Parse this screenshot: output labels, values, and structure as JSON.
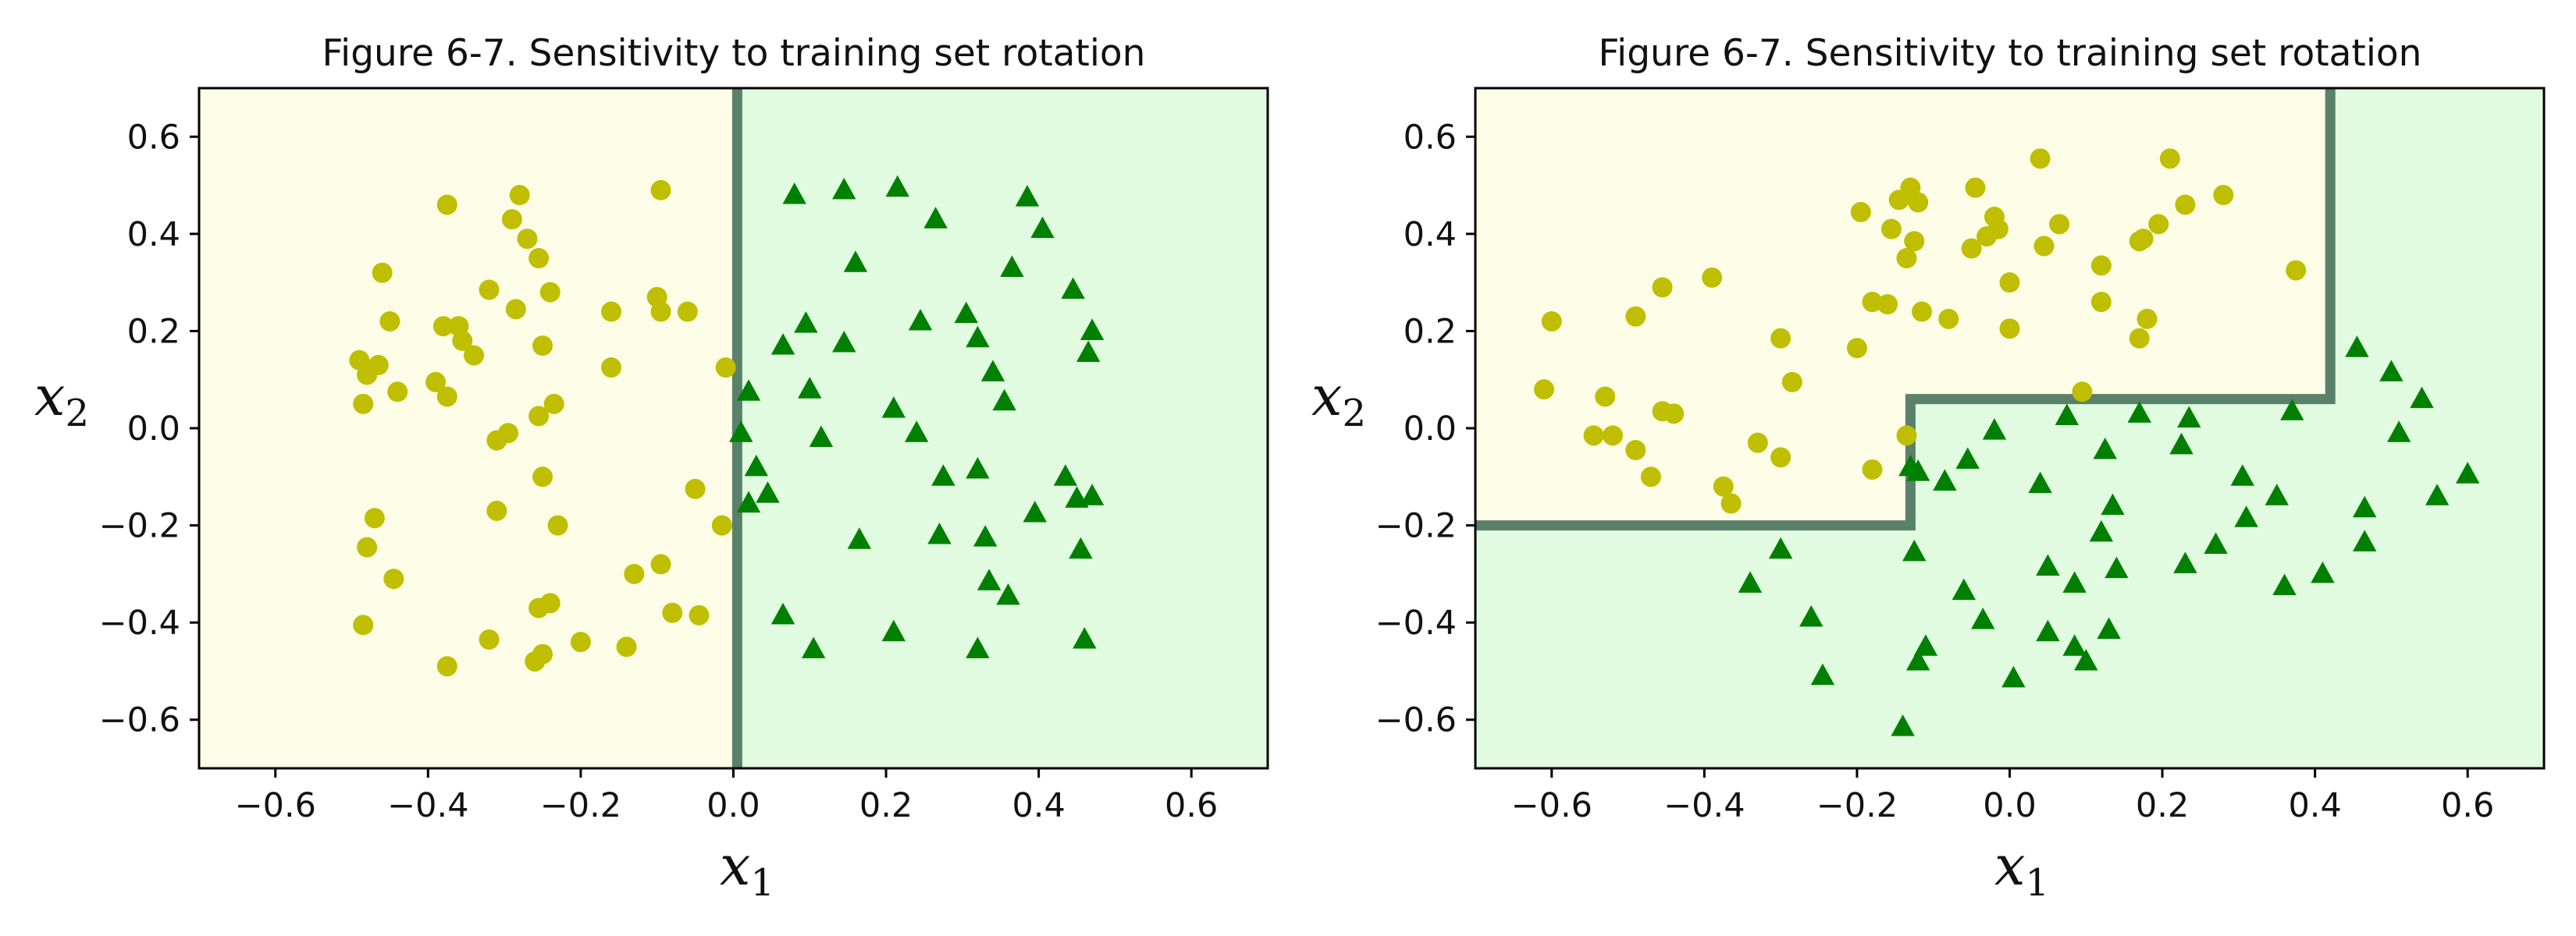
{
  "colors": {
    "class0_region": "#fdfde7",
    "class1_region": "#e0fbe0",
    "class0_marker": "#bfbf00",
    "class1_marker": "#008000"
  },
  "chart_data": [
    {
      "type": "scatter",
      "title": "Figure 6-7. Sensitivity to training set rotation",
      "xlabel": "x1",
      "ylabel": "x2",
      "xlim": [
        -0.7,
        0.7
      ],
      "ylim": [
        -0.7,
        0.7
      ],
      "xticks": [
        "−0.6",
        "−0.4",
        "−0.2",
        "0.0",
        "0.2",
        "0.4",
        "0.6"
      ],
      "yticks": [
        "−0.6",
        "−0.4",
        "−0.2",
        "0.0",
        "0.2",
        "0.4",
        "0.6"
      ],
      "tick_values": [
        -0.6,
        -0.4,
        -0.2,
        0.0,
        0.2,
        0.4,
        0.6
      ],
      "legend": "none",
      "grid": false,
      "decision_boundary": [
        [
          0.005,
          0.7
        ],
        [
          0.005,
          -0.7
        ]
      ],
      "class0_side": "left",
      "series": [
        {
          "marker": "circle",
          "points": [
            [
              -0.49,
              0.14
            ],
            [
              -0.485,
              0.05
            ],
            [
              -0.48,
              0.11
            ],
            [
              -0.465,
              0.13
            ],
            [
              -0.46,
              0.32
            ],
            [
              -0.45,
              0.22
            ],
            [
              -0.44,
              0.075
            ],
            [
              -0.47,
              -0.185
            ],
            [
              -0.48,
              -0.245
            ],
            [
              -0.445,
              -0.31
            ],
            [
              -0.485,
              -0.405
            ],
            [
              -0.375,
              0.46
            ],
            [
              -0.38,
              0.21
            ],
            [
              -0.36,
              0.21
            ],
            [
              -0.355,
              0.18
            ],
            [
              -0.34,
              0.15
            ],
            [
              -0.39,
              0.095
            ],
            [
              -0.375,
              0.065
            ],
            [
              -0.32,
              0.285
            ],
            [
              -0.29,
              0.43
            ],
            [
              -0.28,
              0.48
            ],
            [
              -0.27,
              0.39
            ],
            [
              -0.255,
              0.35
            ],
            [
              -0.285,
              0.245
            ],
            [
              -0.25,
              0.17
            ],
            [
              -0.24,
              0.28
            ],
            [
              -0.235,
              0.05
            ],
            [
              -0.255,
              0.025
            ],
            [
              -0.31,
              -0.025
            ],
            [
              -0.295,
              -0.01
            ],
            [
              -0.31,
              -0.17
            ],
            [
              -0.25,
              -0.1
            ],
            [
              -0.23,
              -0.2
            ],
            [
              -0.24,
              -0.36
            ],
            [
              -0.255,
              -0.37
            ],
            [
              -0.25,
              -0.465
            ],
            [
              -0.26,
              -0.48
            ],
            [
              -0.32,
              -0.435
            ],
            [
              -0.375,
              -0.49
            ],
            [
              -0.2,
              -0.44
            ],
            [
              -0.16,
              0.24
            ],
            [
              -0.16,
              0.125
            ],
            [
              -0.1,
              0.27
            ],
            [
              -0.095,
              0.24
            ],
            [
              -0.095,
              0.49
            ],
            [
              -0.06,
              0.24
            ],
            [
              -0.14,
              -0.45
            ],
            [
              -0.13,
              -0.3
            ],
            [
              -0.095,
              -0.28
            ],
            [
              -0.08,
              -0.38
            ],
            [
              -0.045,
              -0.385
            ],
            [
              -0.05,
              -0.125
            ],
            [
              -0.01,
              0.125
            ],
            [
              -0.015,
              -0.2
            ]
          ]
        },
        {
          "marker": "triangle",
          "points": [
            [
              0.01,
              -0.01
            ],
            [
              0.02,
              0.075
            ],
            [
              0.03,
              -0.08
            ],
            [
              0.02,
              -0.155
            ],
            [
              0.045,
              -0.135
            ],
            [
              0.065,
              0.17
            ],
            [
              0.08,
              0.48
            ],
            [
              0.095,
              0.215
            ],
            [
              0.1,
              0.08
            ],
            [
              0.115,
              -0.02
            ],
            [
              0.145,
              0.49
            ],
            [
              0.145,
              0.175
            ],
            [
              0.16,
              0.34
            ],
            [
              0.165,
              -0.23
            ],
            [
              0.065,
              -0.385
            ],
            [
              0.105,
              -0.455
            ],
            [
              0.215,
              0.495
            ],
            [
              0.21,
              0.04
            ],
            [
              0.21,
              -0.42
            ],
            [
              0.245,
              0.22
            ],
            [
              0.265,
              0.43
            ],
            [
              0.27,
              -0.22
            ],
            [
              0.275,
              -0.1
            ],
            [
              0.24,
              -0.01
            ],
            [
              0.305,
              0.235
            ],
            [
              0.32,
              0.185
            ],
            [
              0.34,
              0.115
            ],
            [
              0.355,
              0.055
            ],
            [
              0.32,
              -0.085
            ],
            [
              0.33,
              -0.225
            ],
            [
              0.335,
              -0.315
            ],
            [
              0.36,
              -0.345
            ],
            [
              0.32,
              -0.455
            ],
            [
              0.365,
              0.33
            ],
            [
              0.385,
              0.475
            ],
            [
              0.395,
              -0.175
            ],
            [
              0.405,
              0.41
            ],
            [
              0.435,
              -0.1
            ],
            [
              0.445,
              0.285
            ],
            [
              0.45,
              -0.145
            ],
            [
              0.455,
              -0.25
            ],
            [
              0.46,
              -0.435
            ],
            [
              0.465,
              0.155
            ],
            [
              0.47,
              0.2
            ],
            [
              0.47,
              -0.14
            ]
          ]
        }
      ]
    },
    {
      "type": "scatter",
      "title": "Figure 6-7. Sensitivity to training set rotation",
      "xlabel": "x1",
      "ylabel": "x2",
      "xlim": [
        -0.7,
        0.7
      ],
      "ylim": [
        -0.7,
        0.7
      ],
      "xticks": [
        "−0.6",
        "−0.4",
        "−0.2",
        "0.0",
        "0.2",
        "0.4",
        "0.6"
      ],
      "yticks": [
        "−0.6",
        "−0.4",
        "−0.2",
        "0.0",
        "0.2",
        "0.4",
        "0.6"
      ],
      "tick_values": [
        -0.6,
        -0.4,
        -0.2,
        0.0,
        0.2,
        0.4,
        0.6
      ],
      "legend": "none",
      "grid": false,
      "decision_boundary": [
        [
          -0.7,
          -0.2
        ],
        [
          -0.13,
          -0.2
        ],
        [
          -0.13,
          0.06
        ],
        [
          0.42,
          0.06
        ],
        [
          0.42,
          0.7
        ]
      ],
      "class0_side": "upper-left",
      "series": [
        {
          "marker": "circle",
          "points": [
            [
              -0.61,
              0.08
            ],
            [
              -0.6,
              0.22
            ],
            [
              -0.545,
              -0.015
            ],
            [
              -0.53,
              0.065
            ],
            [
              -0.52,
              -0.015
            ],
            [
              -0.49,
              0.23
            ],
            [
              -0.49,
              -0.045
            ],
            [
              -0.47,
              -0.1
            ],
            [
              -0.455,
              0.29
            ],
            [
              -0.455,
              0.035
            ],
            [
              -0.44,
              0.03
            ],
            [
              -0.39,
              0.31
            ],
            [
              -0.375,
              -0.12
            ],
            [
              -0.365,
              -0.155
            ],
            [
              -0.33,
              -0.03
            ],
            [
              -0.3,
              0.185
            ],
            [
              -0.3,
              -0.06
            ],
            [
              -0.285,
              0.095
            ],
            [
              -0.2,
              0.165
            ],
            [
              -0.18,
              0.26
            ],
            [
              -0.16,
              0.255
            ],
            [
              -0.195,
              0.445
            ],
            [
              -0.155,
              0.41
            ],
            [
              -0.145,
              0.47
            ],
            [
              -0.135,
              0.35
            ],
            [
              -0.13,
              0.495
            ],
            [
              -0.125,
              0.385
            ],
            [
              -0.12,
              0.465
            ],
            [
              -0.115,
              0.24
            ],
            [
              -0.08,
              0.225
            ],
            [
              -0.05,
              0.37
            ],
            [
              -0.045,
              0.495
            ],
            [
              -0.03,
              0.395
            ],
            [
              -0.02,
              0.435
            ],
            [
              -0.015,
              0.41
            ],
            [
              0.0,
              0.205
            ],
            [
              0.0,
              0.3
            ],
            [
              0.04,
              0.555
            ],
            [
              0.045,
              0.375
            ],
            [
              0.065,
              0.42
            ],
            [
              0.12,
              0.335
            ],
            [
              0.12,
              0.26
            ],
            [
              0.17,
              0.185
            ],
            [
              0.17,
              0.385
            ],
            [
              0.175,
              0.39
            ],
            [
              0.18,
              0.225
            ],
            [
              0.195,
              0.42
            ],
            [
              0.21,
              0.555
            ],
            [
              0.23,
              0.46
            ],
            [
              0.28,
              0.48
            ],
            [
              0.095,
              0.075
            ],
            [
              -0.135,
              -0.015
            ],
            [
              -0.18,
              -0.085
            ],
            [
              0.375,
              0.325
            ]
          ]
        },
        {
          "marker": "triangle",
          "points": [
            [
              -0.34,
              -0.32
            ],
            [
              -0.3,
              -0.25
            ],
            [
              -0.26,
              -0.39
            ],
            [
              -0.245,
              -0.51
            ],
            [
              -0.14,
              -0.615
            ],
            [
              -0.13,
              -0.08
            ],
            [
              -0.12,
              -0.09
            ],
            [
              -0.125,
              -0.255
            ],
            [
              -0.12,
              -0.48
            ],
            [
              -0.11,
              -0.45
            ],
            [
              -0.085,
              -0.11
            ],
            [
              -0.055,
              -0.065
            ],
            [
              -0.06,
              -0.335
            ],
            [
              -0.035,
              -0.395
            ],
            [
              -0.02,
              -0.005
            ],
            [
              0.005,
              -0.515
            ],
            [
              0.04,
              -0.115
            ],
            [
              0.05,
              -0.285
            ],
            [
              0.05,
              -0.42
            ],
            [
              0.075,
              0.025
            ],
            [
              0.085,
              -0.32
            ],
            [
              0.085,
              -0.45
            ],
            [
              0.1,
              -0.48
            ],
            [
              0.12,
              -0.215
            ],
            [
              0.125,
              -0.045
            ],
            [
              0.13,
              -0.415
            ],
            [
              0.135,
              -0.16
            ],
            [
              0.14,
              -0.29
            ],
            [
              0.17,
              0.03
            ],
            [
              0.225,
              -0.035
            ],
            [
              0.23,
              -0.28
            ],
            [
              0.235,
              0.02
            ],
            [
              0.27,
              -0.24
            ],
            [
              0.305,
              -0.1
            ],
            [
              0.31,
              -0.185
            ],
            [
              0.35,
              -0.14
            ],
            [
              0.36,
              -0.325
            ],
            [
              0.37,
              0.035
            ],
            [
              0.41,
              -0.3
            ],
            [
              0.455,
              0.165
            ],
            [
              0.465,
              -0.165
            ],
            [
              0.465,
              -0.235
            ],
            [
              0.5,
              0.115
            ],
            [
              0.51,
              -0.01
            ],
            [
              0.54,
              0.06
            ],
            [
              0.56,
              -0.14
            ],
            [
              0.6,
              -0.095
            ]
          ]
        }
      ]
    }
  ]
}
